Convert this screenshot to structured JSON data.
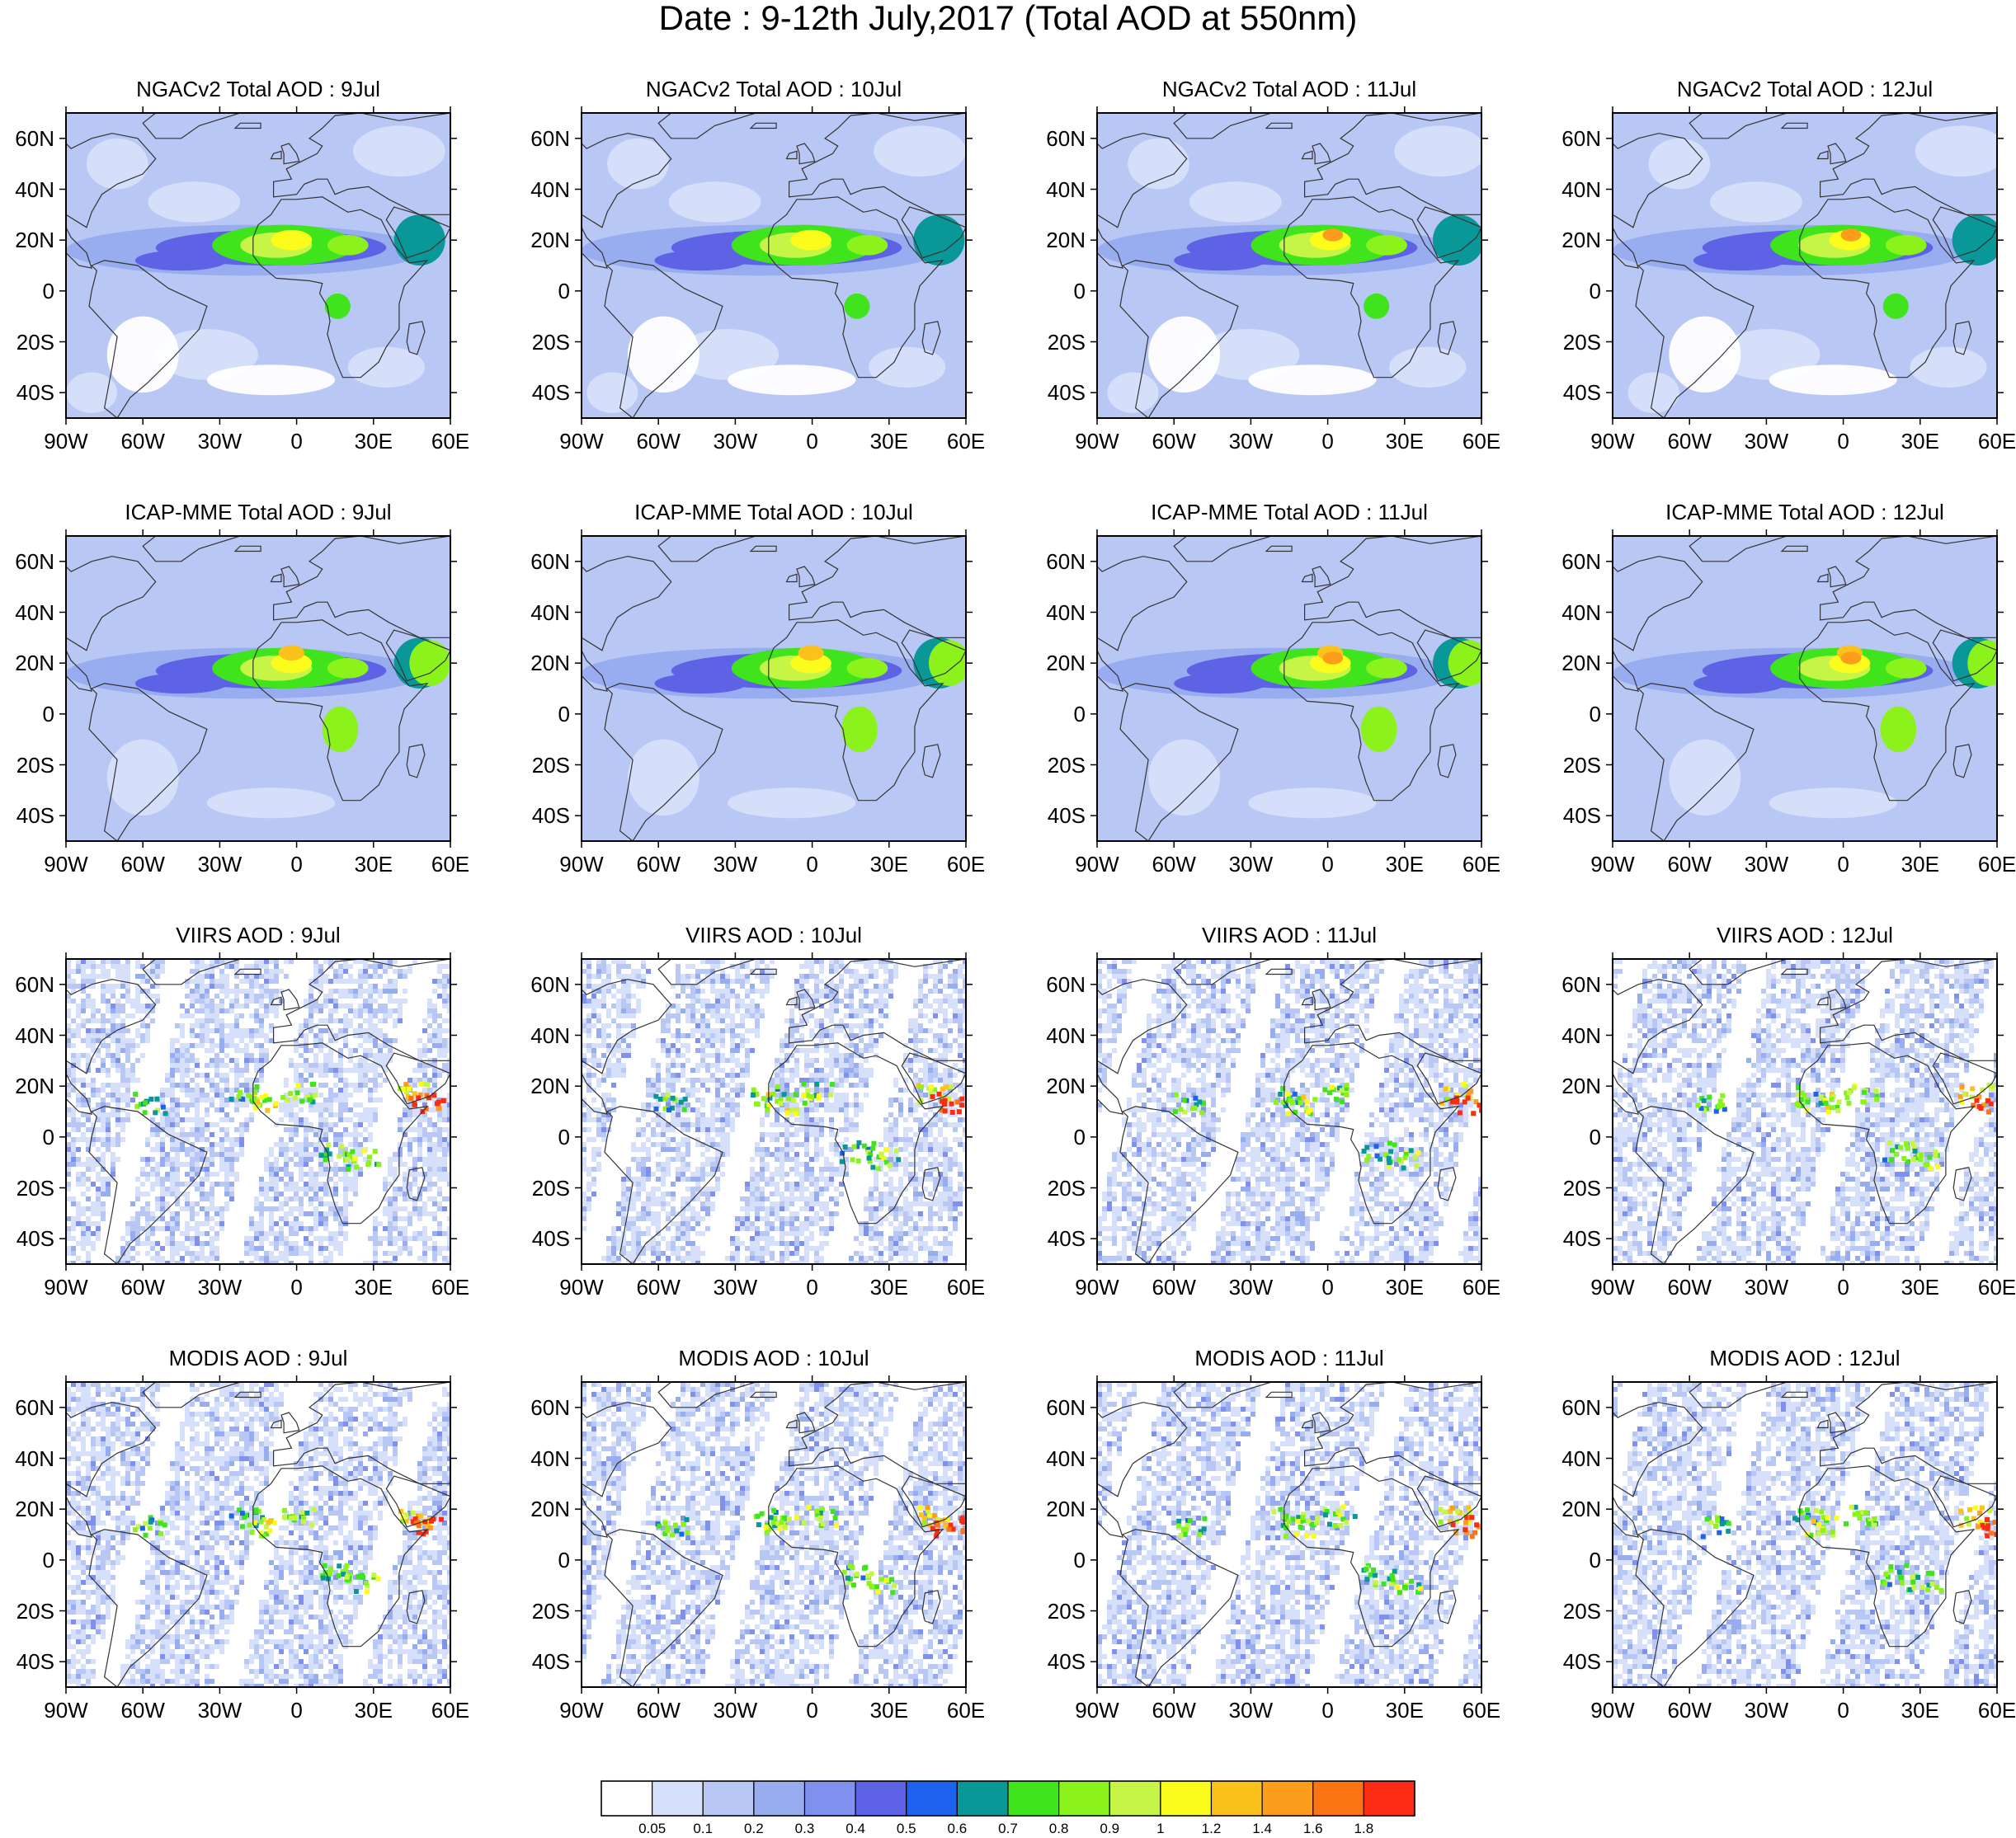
{
  "title": "Date : 9-12th July,2017 (Total AOD at 550nm)",
  "rows": [
    {
      "model": "NGACv2",
      "label_prefix": "NGACv2 Total AOD : ",
      "fields": "smooth"
    },
    {
      "model": "ICAP-MME",
      "label_prefix": "ICAP-MME Total AOD : ",
      "fields": "smooth"
    },
    {
      "model": "VIIRS",
      "label_prefix": "VIIRS AOD : ",
      "fields": "swath"
    },
    {
      "model": "MODIS",
      "label_prefix": "MODIS AOD : ",
      "fields": "swath"
    }
  ],
  "dates": [
    "9Jul",
    "10Jul",
    "11Jul",
    "12Jul"
  ],
  "panel_titles": [
    [
      "NGACv2 Total AOD : 9Jul",
      "NGACv2 Total AOD : 10Jul",
      "NGACv2 Total AOD : 11Jul",
      "NGACv2 Total AOD : 12Jul"
    ],
    [
      "ICAP-MME Total AOD : 9Jul",
      "ICAP-MME Total AOD : 10Jul",
      "ICAP-MME Total AOD : 11Jul",
      "ICAP-MME Total AOD : 12Jul"
    ],
    [
      "VIIRS AOD : 9Jul",
      "VIIRS AOD : 10Jul",
      "VIIRS AOD : 11Jul",
      "VIIRS AOD : 12Jul"
    ],
    [
      "MODIS AOD : 9Jul",
      "MODIS AOD : 10Jul",
      "MODIS AOD : 11Jul",
      "MODIS AOD : 12Jul"
    ]
  ],
  "lat_ticks": [
    "60N",
    "40N",
    "20N",
    "0",
    "20S",
    "40S"
  ],
  "lon_ticks": [
    "90W",
    "60W",
    "30W",
    "0",
    "30E",
    "60E"
  ],
  "map_extent": {
    "lon": [
      -90,
      60
    ],
    "lat": [
      -50,
      70
    ]
  },
  "colorbar": {
    "colors": [
      "#ffffff",
      "#d6e0fa",
      "#b9c7f4",
      "#98adf0",
      "#7f90ee",
      "#5e62e4",
      "#1e62f0",
      "#099797",
      "#3fe41c",
      "#8cf21c",
      "#c6f547",
      "#fcfc1c",
      "#fcc21c",
      "#fc9e1c",
      "#fc7414",
      "#fc2c14"
    ],
    "labels": [
      "0.05",
      "0.1",
      "0.2",
      "0.3",
      "0.4",
      "0.5",
      "0.6",
      "0.7",
      "0.8",
      "0.9",
      "1",
      "1.2",
      "1.4",
      "1.6",
      "1.8"
    ]
  }
}
